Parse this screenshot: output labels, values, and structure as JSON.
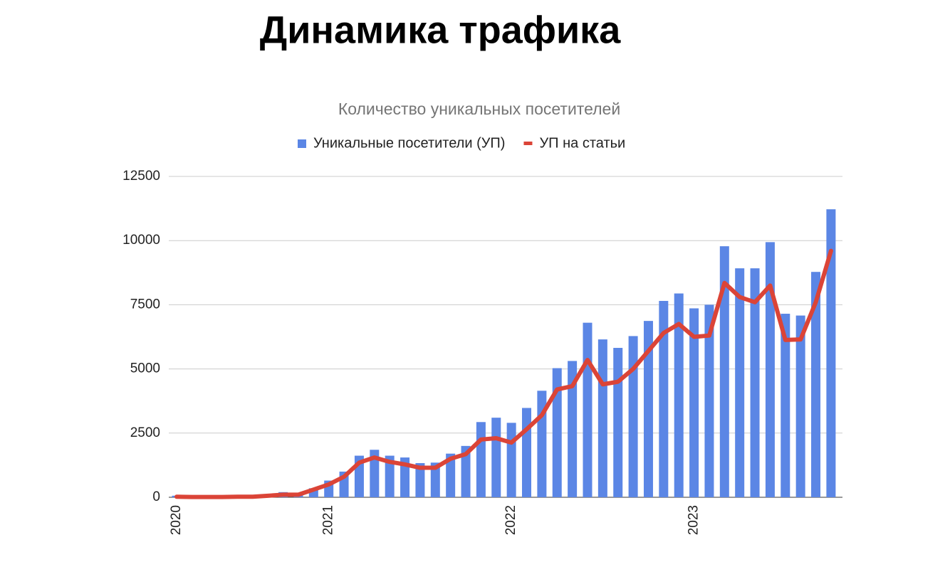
{
  "chart_data": {
    "type": "combo",
    "title": "Динамика трафика",
    "subtitle": "Количество уникальных посетителей",
    "categories": [
      "2020",
      null,
      null,
      null,
      null,
      null,
      null,
      null,
      null,
      null,
      "2021",
      null,
      null,
      null,
      null,
      null,
      null,
      null,
      null,
      null,
      null,
      null,
      "2022",
      null,
      null,
      null,
      null,
      null,
      null,
      null,
      null,
      null,
      null,
      null,
      "2023",
      null,
      null,
      null,
      null,
      null,
      null,
      null,
      null,
      null
    ],
    "series": [
      {
        "name": "Уникальные посетители (УП)",
        "type": "bar",
        "color": "#5b86e5",
        "values": [
          60,
          20,
          20,
          30,
          40,
          50,
          120,
          200,
          180,
          350,
          650,
          1000,
          1620,
          1850,
          1620,
          1550,
          1330,
          1350,
          1700,
          2000,
          2930,
          3100,
          2900,
          3480,
          4150,
          5030,
          5310,
          6800,
          6150,
          5820,
          6280,
          6870,
          7650,
          7940,
          7360,
          7500,
          9780,
          8920,
          8920,
          9940,
          7150,
          7080,
          8780,
          11220
        ]
      },
      {
        "name": "УП на статьи",
        "type": "line",
        "color": "#db4437",
        "values": [
          20,
          10,
          10,
          10,
          20,
          20,
          60,
          100,
          100,
          300,
          500,
          800,
          1350,
          1550,
          1380,
          1280,
          1150,
          1150,
          1500,
          1680,
          2250,
          2300,
          2130,
          2650,
          3200,
          4200,
          4330,
          5350,
          4400,
          4500,
          5000,
          5700,
          6400,
          6750,
          6250,
          6300,
          8350,
          7800,
          7600,
          8250,
          6130,
          6150,
          7600,
          9600
        ]
      }
    ],
    "ylim": [
      0,
      12500
    ],
    "yticks": [
      0,
      2500,
      5000,
      7500,
      10000,
      12500
    ],
    "grid": true,
    "legend": "top"
  }
}
